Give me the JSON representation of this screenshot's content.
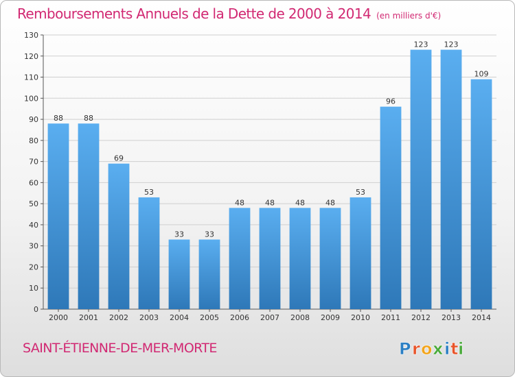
{
  "header": {
    "title": "Remboursements Annuels de la Dette de 2000 à 2014",
    "unit": "(en milliers d'€)"
  },
  "footer": {
    "commune": "SAINT-ÉTIENNE-DE-MER-MORTE",
    "brand": "Proxiti",
    "brand_letters": [
      {
        "char": "P",
        "color": "#2b7fc4"
      },
      {
        "char": "r",
        "color": "#e8542a"
      },
      {
        "char": "o",
        "color": "#f2a51e"
      },
      {
        "char": "x",
        "color": "#4aaa3b"
      },
      {
        "char": "i",
        "color": "#2b7fc4"
      },
      {
        "char": "t",
        "color": "#e8542a"
      },
      {
        "char": "i",
        "color": "#4aaa3b"
      }
    ]
  },
  "colors": {
    "title": "#d12872",
    "bar_light": "#5aaef0",
    "bar_dark": "#2e78b8",
    "grid": "#cfcfcf",
    "axis": "#555555",
    "text": "#333333"
  },
  "chart_data": {
    "type": "bar",
    "categories": [
      "2000",
      "2001",
      "2002",
      "2003",
      "2004",
      "2005",
      "2006",
      "2007",
      "2008",
      "2009",
      "2010",
      "2011",
      "2012",
      "2013",
      "2014"
    ],
    "values": [
      88,
      88,
      69,
      53,
      33,
      33,
      48,
      48,
      48,
      48,
      53,
      96,
      123,
      123,
      109
    ],
    "ylim": [
      0,
      130
    ],
    "yticks": [
      0,
      10,
      20,
      30,
      40,
      50,
      60,
      70,
      80,
      90,
      100,
      110,
      120,
      130
    ],
    "grid": true,
    "data_labels": true
  }
}
